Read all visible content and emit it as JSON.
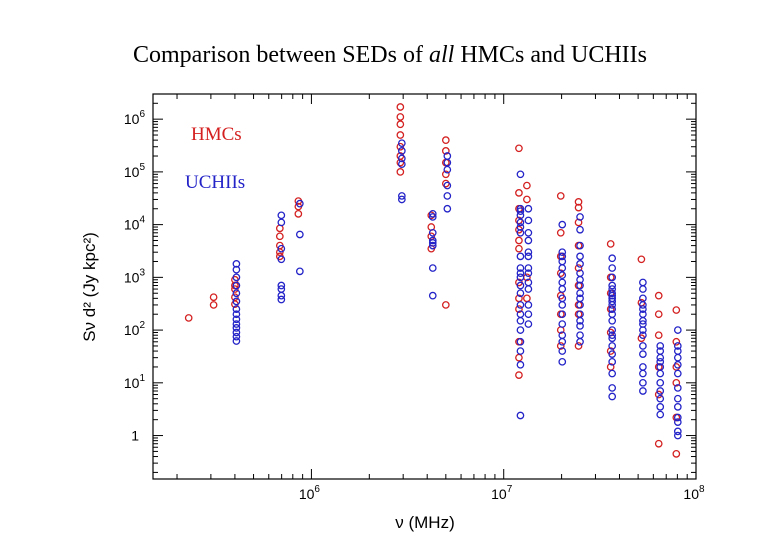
{
  "title": {
    "prefix": "Comparison between SEDs of ",
    "emph": "all",
    "suffix": " HMCs and UCHIIs"
  },
  "colors": {
    "hmc": "#d42020",
    "uchii": "#2323c8",
    "axis": "#000000"
  },
  "chart_data": {
    "type": "scatter",
    "title": "Comparison between SEDs of all HMCs and UCHIIs",
    "xlabel": "ν (MHz)",
    "ylabel": "Sν d² (Jy kpc²)",
    "xscale": "log",
    "yscale": "log",
    "xlim": [
      150000,
      100000000
    ],
    "ylim": [
      0.15,
      3000000
    ],
    "x_ticks": [
      {
        "value": 1000000,
        "base": "10",
        "exp": "6"
      },
      {
        "value": 10000000,
        "base": "10",
        "exp": "7"
      },
      {
        "value": 100000000,
        "base": "10",
        "exp": "8"
      }
    ],
    "y_ticks": [
      {
        "value": 1,
        "base": "1",
        "exp": ""
      },
      {
        "value": 10,
        "base": "10",
        "exp": "1"
      },
      {
        "value": 100,
        "base": "10",
        "exp": "2"
      },
      {
        "value": 1000,
        "base": "10",
        "exp": "3"
      },
      {
        "value": 10000,
        "base": "10",
        "exp": "4"
      },
      {
        "value": 100000,
        "base": "10",
        "exp": "5"
      },
      {
        "value": 1000000,
        "base": "10",
        "exp": "6"
      }
    ],
    "series": [
      {
        "name": "HMCs",
        "color": "#d42020",
        "groups": [
          {
            "x": 230000,
            "y": [
              170
            ]
          },
          {
            "x": 310000,
            "y": [
              420,
              300
            ]
          },
          {
            "x": 400000,
            "y": [
              900,
              700,
              600,
              420,
              310
            ]
          },
          {
            "x": 685000,
            "y": [
              8500,
              6000,
              4000,
              3000,
              2500
            ]
          },
          {
            "x": 855000,
            "y": [
              28000,
              22000,
              16000
            ]
          },
          {
            "x": 2900000,
            "y": [
              1700000,
              1100000,
              800000,
              500000,
              300000,
              200000,
              150000,
              100000
            ]
          },
          {
            "x": 4200000,
            "y": [
              15000,
              9000,
              6000,
              3500
            ]
          },
          {
            "x": 5000000,
            "y": [
              400000,
              250000,
              150000,
              90000,
              60000,
              300
            ]
          },
          {
            "x": 12000000,
            "y": [
              280000,
              40000,
              20000,
              12000,
              8000,
              5000,
              3500,
              800,
              400,
              250,
              60,
              30,
              14
            ]
          },
          {
            "x": 13200000,
            "y": [
              55000,
              30000,
              1000,
              400
            ]
          },
          {
            "x": 19800000,
            "y": [
              35000,
              7000,
              2500,
              1200,
              450,
              200,
              100,
              50
            ]
          },
          {
            "x": 24500000,
            "y": [
              27000,
              21000,
              11000,
              4000,
              1500,
              700,
              300,
              200,
              50
            ]
          },
          {
            "x": 36000000,
            "y": [
              4300,
              1000,
              500,
              250,
              90,
              40,
              20
            ]
          },
          {
            "x": 52000000,
            "y": [
              2200,
              330,
              70
            ]
          },
          {
            "x": 64000000,
            "y": [
              450,
              200,
              80,
              20,
              6,
              0.7
            ]
          },
          {
            "x": 79000000,
            "y": [
              240,
              60,
              20,
              10,
              2.2,
              0.45
            ]
          }
        ]
      },
      {
        "name": "UCHIIs",
        "color": "#2323c8",
        "groups": [
          {
            "x": 400000,
            "y": [
              1800,
              1400,
              1000,
              700,
              500,
              350,
              250,
              200,
              160,
              130,
              110,
              90,
              75,
              62
            ]
          },
          {
            "x": 685000,
            "y": [
              15000,
              11000,
              3500,
              2200,
              700,
              600,
              450,
              380
            ]
          },
          {
            "x": 855000,
            "y": [
              25000,
              6500,
              1300
            ]
          },
          {
            "x": 2900000,
            "y": [
              350000,
              250000,
              180000,
              140000,
              35000,
              30000
            ]
          },
          {
            "x": 4200000,
            "y": [
              16000,
              14000,
              7000,
              5000,
              4500,
              4000,
              1500,
              450
            ]
          },
          {
            "x": 5000000,
            "y": [
              200000,
              150000,
              110000,
              55000,
              35000,
              20000
            ]
          },
          {
            "x": 12000000,
            "y": [
              90000,
              20000,
              18000,
              15000,
              11000,
              9000,
              7000,
              2500,
              1500,
              1200,
              1000,
              700,
              500,
              300,
              200,
              150,
              100,
              60,
              40,
              22,
              2.4
            ]
          },
          {
            "x": 13200000,
            "y": [
              20000,
              12000,
              7000,
              5000,
              3000,
              2500,
              1500,
              1200,
              800,
              600,
              300,
              200,
              130
            ]
          },
          {
            "x": 19800000,
            "y": [
              10000,
              3000,
              2500,
              2000,
              1500,
              1100,
              800,
              600,
              400,
              300,
              200,
              130,
              80,
              60,
              40,
              25
            ]
          },
          {
            "x": 24500000,
            "y": [
              14000,
              8000,
              4000,
              2500,
              1800,
              1200,
              900,
              700,
              500,
              400,
              300,
              200,
              150,
              120,
              80,
              60
            ]
          },
          {
            "x": 36000000,
            "y": [
              2300,
              1500,
              1000,
              700,
              600,
              500,
              450,
              400,
              350,
              300,
              250,
              200,
              150,
              100,
              80,
              70,
              50,
              35,
              25,
              15,
              8,
              5.5
            ]
          },
          {
            "x": 52000000,
            "y": [
              800,
              600,
              400,
              300,
              250,
              200,
              150,
              130,
              100,
              80,
              50,
              35,
              20,
              15,
              10,
              7
            ]
          },
          {
            "x": 64000000,
            "y": [
              50,
              40,
              30,
              25,
              20,
              15,
              10,
              7,
              5,
              3.5,
              2.5
            ]
          },
          {
            "x": 79000000,
            "y": [
              100,
              50,
              40,
              30,
              22,
              15,
              8,
              5,
              3.5,
              2.2,
              1.8,
              1.2,
              1.0
            ]
          }
        ]
      }
    ]
  }
}
